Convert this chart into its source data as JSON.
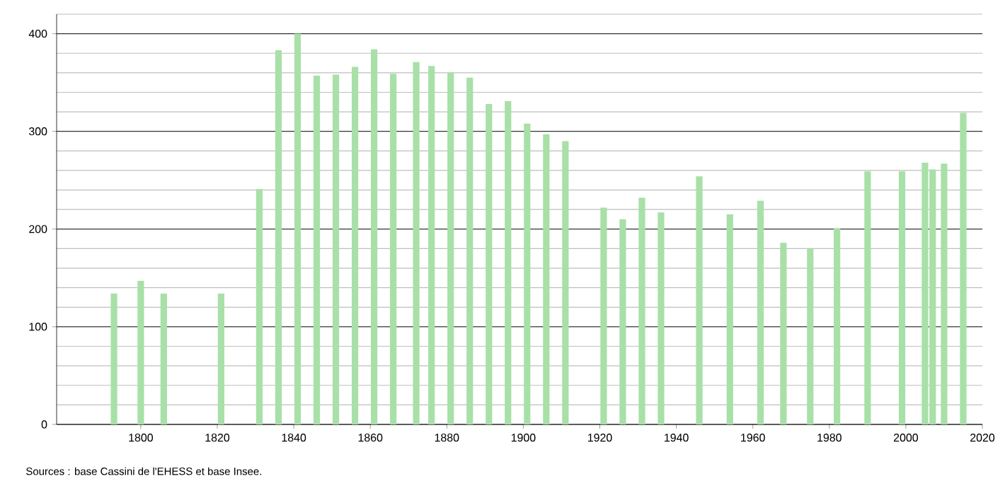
{
  "chart_data": {
    "type": "bar",
    "x": [
      1793,
      1800,
      1806,
      1821,
      1831,
      1836,
      1841,
      1846,
      1851,
      1856,
      1861,
      1866,
      1872,
      1876,
      1881,
      1886,
      1891,
      1896,
      1901,
      1906,
      1911,
      1921,
      1926,
      1931,
      1936,
      1946,
      1954,
      1962,
      1968,
      1975,
      1982,
      1990,
      1999,
      2005,
      2007,
      2010,
      2015
    ],
    "values": [
      134,
      147,
      134,
      134,
      241,
      383,
      400,
      357,
      358,
      366,
      384,
      359,
      371,
      367,
      360,
      355,
      328,
      331,
      308,
      297,
      290,
      222,
      210,
      232,
      217,
      254,
      215,
      229,
      186,
      180,
      201,
      259,
      259,
      268,
      261,
      267,
      319
    ],
    "color": "#a8e0a8",
    "xlim": [
      1778,
      2020
    ],
    "xticks": [
      1800,
      1820,
      1840,
      1860,
      1880,
      1900,
      1920,
      1940,
      1960,
      1980,
      2000,
      2020
    ],
    "ylim": [
      0,
      420
    ],
    "yticks": [
      0,
      {
        "value": 20,
        "label": null
      },
      {
        "value": 40,
        "label": null
      },
      {
        "value": 60,
        "label": null
      },
      {
        "value": 80,
        "label": null
      },
      100,
      {
        "value": 120,
        "label": null
      },
      {
        "value": 140,
        "label": null
      },
      {
        "value": 160,
        "label": null
      },
      {
        "value": 180,
        "label": null
      },
      200,
      {
        "value": 220,
        "label": null
      },
      {
        "value": 240,
        "label": null
      },
      {
        "value": 260,
        "label": null
      },
      {
        "value": 280,
        "label": null
      },
      300,
      {
        "value": 320,
        "label": null
      },
      {
        "value": 340,
        "label": null
      },
      {
        "value": 360,
        "label": null
      },
      {
        "value": 380,
        "label": null
      },
      400,
      {
        "value": 420,
        "label": null
      }
    ],
    "grid": "y",
    "annotations": [
      "Sources : base Cassini de l'EHESS et base Insee."
    ]
  }
}
